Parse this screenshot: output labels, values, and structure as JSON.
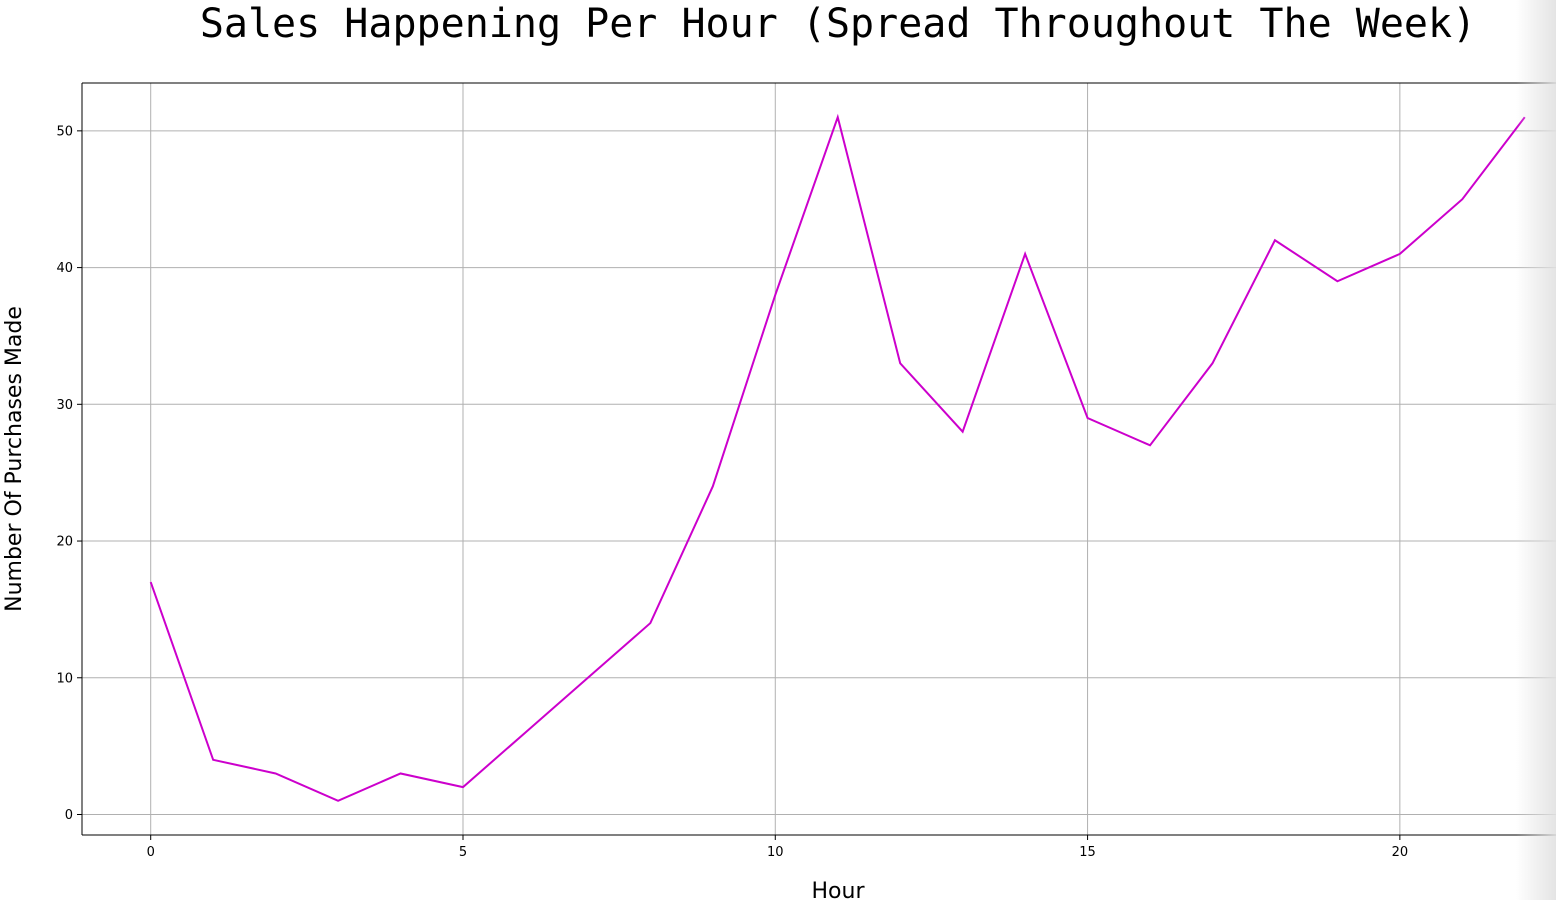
{
  "chart_data": {
    "type": "line",
    "title": "Sales Happening Per Hour (Spread Throughout The Week)",
    "xlabel": "Hour",
    "ylabel": "Number Of Purchases Made",
    "x": [
      0,
      1,
      2,
      3,
      4,
      5,
      6,
      7,
      8,
      9,
      10,
      11,
      12,
      13,
      14,
      15,
      16,
      17,
      18,
      19,
      20,
      21,
      22
    ],
    "series": [
      {
        "values": [
          17,
          4,
          3,
          1,
          3,
          2,
          6,
          10,
          14,
          24,
          38,
          51,
          33,
          28,
          41,
          29,
          27,
          33,
          42,
          39,
          41,
          45,
          51
        ],
        "color": "#cc00cc"
      }
    ],
    "xticks": [
      0,
      5,
      10,
      15,
      20
    ],
    "yticks": [
      0,
      10,
      20,
      30,
      40,
      50
    ],
    "xtick_labels": [
      "0",
      "5",
      "10",
      "15",
      "20"
    ],
    "ytick_labels": [
      "0",
      "10",
      "20",
      "30",
      "40",
      "50"
    ],
    "xlim": [
      -1.1,
      22.5
    ],
    "ylim": [
      -1.5,
      53.5
    ],
    "grid": true,
    "grid_color": "#b0b0b0",
    "frame_color": "#000000"
  }
}
